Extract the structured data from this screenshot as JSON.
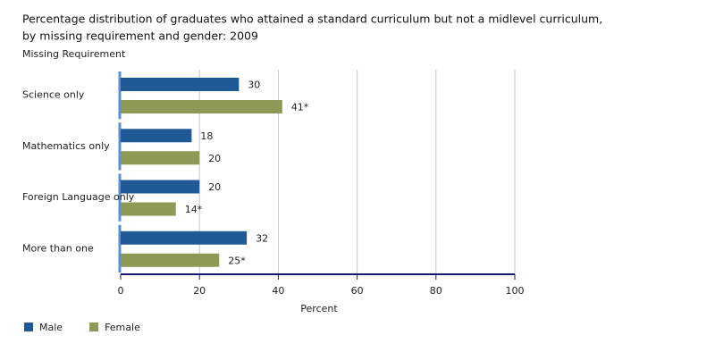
{
  "chart_data": {
    "type": "hbar",
    "title": [
      "Percentage distribution of graduates who attained a standard curriculum but not a midlevel curriculum,",
      "by missing requirement and gender: 2009"
    ],
    "y_label": "Missing Requirement",
    "x_label": "Percent",
    "categories": [
      "Science only",
      "Mathematics only",
      "Foreign Language only",
      "More than one"
    ],
    "series": [
      {
        "name": "Male",
        "color": "#1f5a96",
        "values": [
          30,
          18,
          20,
          32
        ]
      },
      {
        "name": "Female",
        "color": "#8c9a55",
        "values": [
          41,
          20,
          14,
          25
        ],
        "value_labels": [
          "41*",
          "20",
          "14*",
          "25*"
        ]
      }
    ],
    "xlim": [
      0,
      100
    ],
    "xticks": [
      0,
      20,
      40,
      60,
      80,
      100
    ],
    "grid": true,
    "legend": "bottom-left"
  }
}
